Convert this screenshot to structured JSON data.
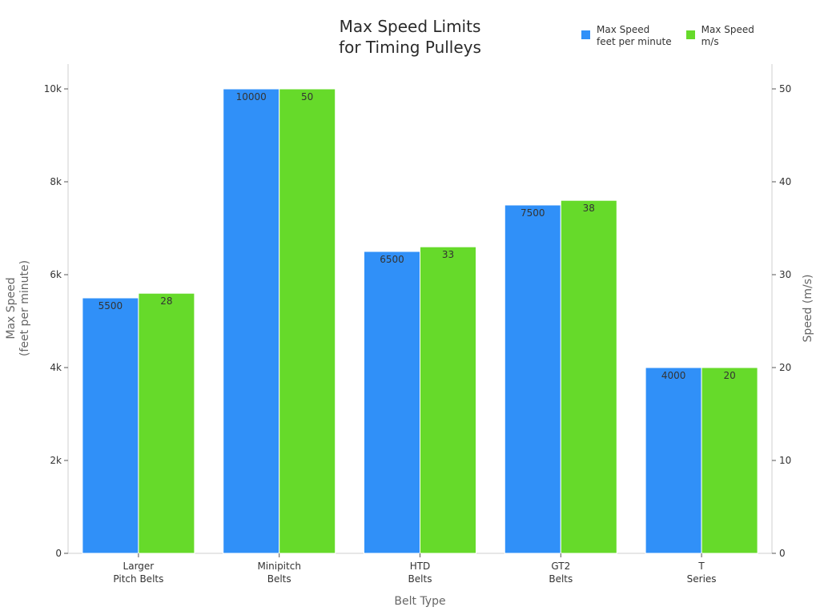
{
  "chart_data": {
    "type": "bar",
    "title": "Max Speed Limits\nfor Timing Pulleys",
    "title_lines": [
      "Max Speed Limits",
      "for Timing Pulleys"
    ],
    "xlabel": "Belt Type",
    "ylabel": "Max Speed\n(feet per minute)",
    "ylabel_lines": [
      "Max Speed",
      "(feet per minute)"
    ],
    "y2label": "Speed (m/s)",
    "categories": [
      "Larger\nPitch Belts",
      "Minipitch\nBelts",
      "HTD\nBelts",
      "GT2\nBelts",
      "T\nSeries"
    ],
    "category_lines": [
      [
        "Larger",
        "Pitch Belts"
      ],
      [
        "Minipitch",
        "Belts"
      ],
      [
        "HTD",
        "Belts"
      ],
      [
        "GT2",
        "Belts"
      ],
      [
        "T",
        "Series"
      ]
    ],
    "series": [
      {
        "name": "Max Speed\nfeet per minute",
        "axis": "left",
        "color": "#3090F8",
        "values": [
          5500,
          10000,
          6500,
          7500,
          4000
        ]
      },
      {
        "name": "Max Speed\nm/s",
        "axis": "right",
        "color": "#66DA2A",
        "values": [
          28,
          50,
          33,
          38,
          20
        ]
      }
    ],
    "ylim": [
      0,
      10500
    ],
    "y2lim": [
      0,
      52.5
    ],
    "yticks": [
      0,
      2000,
      4000,
      6000,
      8000,
      10000
    ],
    "ytick_labels": [
      "0",
      "2k",
      "4k",
      "6k",
      "8k",
      "10k"
    ],
    "y2ticks": [
      0,
      10,
      20,
      30,
      40,
      50
    ],
    "y2tick_labels": [
      "0",
      "10",
      "20",
      "30",
      "40",
      "50"
    ],
    "grid": false,
    "legend_position": "top-right",
    "data_labels": true
  }
}
